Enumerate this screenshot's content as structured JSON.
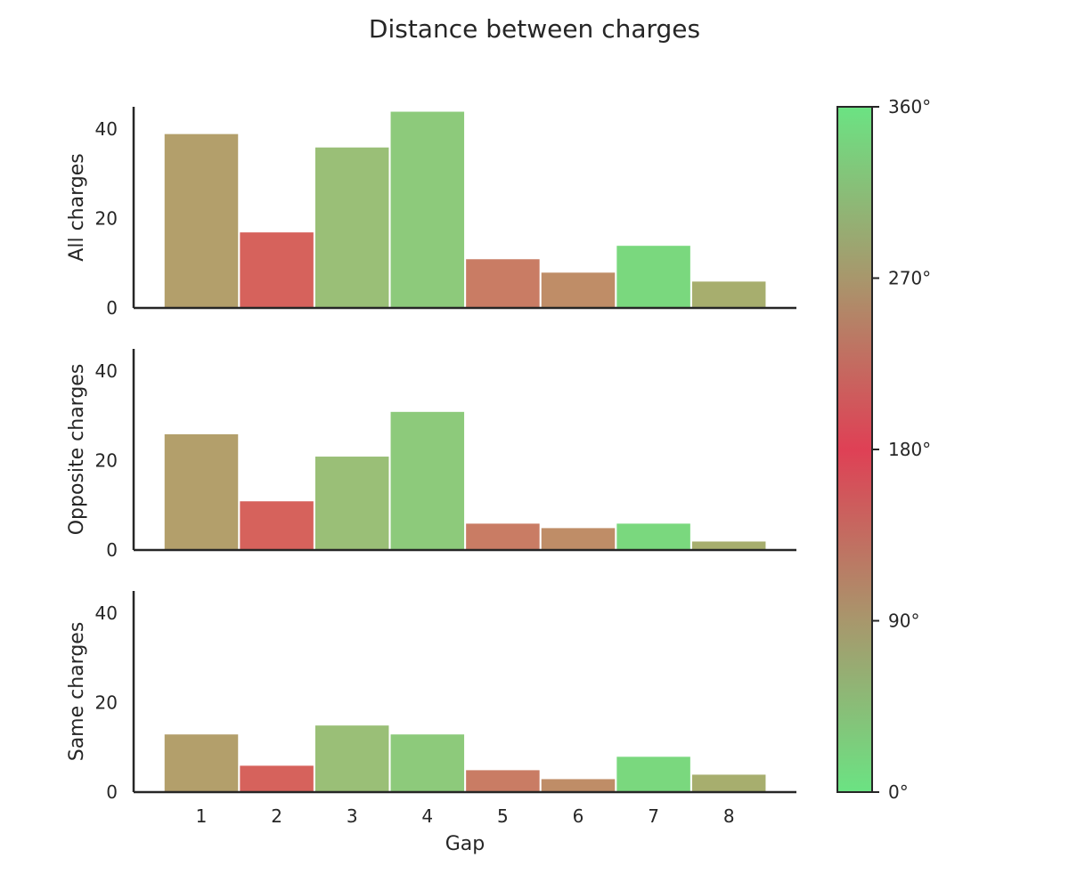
{
  "chart_data": {
    "type": "bar",
    "title": "Distance between charges",
    "xlabel": "Gap",
    "categories": [
      "1",
      "2",
      "3",
      "4",
      "5",
      "6",
      "7",
      "8"
    ],
    "ylim": [
      0,
      45
    ],
    "yticks": [
      "0",
      "20",
      "40"
    ],
    "bar_colors": [
      "#b39f6b",
      "#d6625c",
      "#9abf77",
      "#8dca7b",
      "#c97c64",
      "#bf8d67",
      "#7ad87e",
      "#a7ae6e"
    ],
    "panels": [
      {
        "ylabel": "All charges",
        "values": [
          39,
          17,
          36,
          44,
          11,
          8,
          14,
          6
        ]
      },
      {
        "ylabel": "Opposite charges",
        "values": [
          26,
          11,
          21,
          31,
          6,
          5,
          6,
          2
        ]
      },
      {
        "ylabel": "Same charges",
        "values": [
          13,
          6,
          15,
          13,
          5,
          3,
          8,
          4
        ]
      }
    ],
    "colorbar": {
      "ticks": [
        "0°",
        "90°",
        "180°",
        "270°",
        "360°"
      ],
      "tick_values": [
        0,
        90,
        180,
        270,
        360
      ],
      "range": [
        0,
        360
      ],
      "stops": [
        {
          "value": 0,
          "color": "#6be383"
        },
        {
          "value": 90,
          "color": "#a8976c"
        },
        {
          "value": 180,
          "color": "#df4055"
        },
        {
          "value": 270,
          "color": "#a8976c"
        },
        {
          "value": 360,
          "color": "#6be383"
        }
      ]
    }
  }
}
